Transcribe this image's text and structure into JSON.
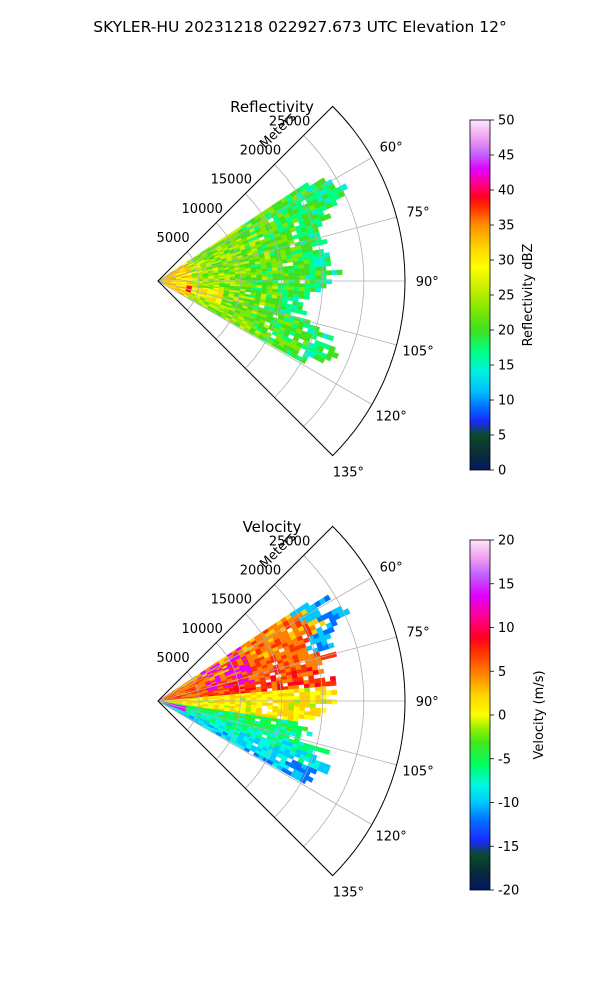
{
  "suptitle": "SKYLER-HU  20231218  022927.673 UTC Elevation 12°",
  "chart_data": [
    {
      "type": "heatmap",
      "projection": "polar-sector",
      "title": "Reflectivity",
      "radial_label": "Meters",
      "radial_ticks": [
        "5000",
        "10000",
        "15000",
        "20000",
        "25000"
      ],
      "radial_tick_values": [
        5000,
        10000,
        15000,
        20000,
        25000
      ],
      "radial_max": 30000,
      "theta_ticks": [
        "60°",
        "75°",
        "90°",
        "105°",
        "120°",
        "135°"
      ],
      "theta_tick_values": [
        60,
        75,
        90,
        105,
        120,
        135
      ],
      "theta_range_deg": [
        45,
        135
      ],
      "grid": true,
      "colorbar": {
        "label": "Reflectivity dBZ",
        "ticks": [
          "0",
          "5",
          "10",
          "15",
          "20",
          "25",
          "30",
          "35",
          "40",
          "45",
          "50"
        ],
        "range": [
          0,
          50
        ]
      },
      "echo_extent": {
        "theta_range_deg": [
          55,
          120
        ],
        "max_range_m": 25000
      }
    },
    {
      "type": "heatmap",
      "projection": "polar-sector",
      "title": "Velocity",
      "radial_label": "Meters",
      "radial_ticks": [
        "5000",
        "10000",
        "15000",
        "20000",
        "25000"
      ],
      "radial_tick_values": [
        5000,
        10000,
        15000,
        20000,
        25000
      ],
      "radial_max": 30000,
      "theta_ticks": [
        "60°",
        "75°",
        "90°",
        "105°",
        "120°",
        "135°"
      ],
      "theta_tick_values": [
        60,
        75,
        90,
        105,
        120,
        135
      ],
      "theta_range_deg": [
        45,
        135
      ],
      "grid": true,
      "colorbar": {
        "label": "Velocity (m/s)",
        "ticks": [
          "-20",
          "-15",
          "-10",
          "-5",
          "0",
          "5",
          "10",
          "15",
          "20"
        ],
        "range": [
          -20,
          20
        ]
      },
      "echo_extent": {
        "theta_range_deg": [
          55,
          120
        ],
        "max_range_m": 25000
      }
    }
  ]
}
